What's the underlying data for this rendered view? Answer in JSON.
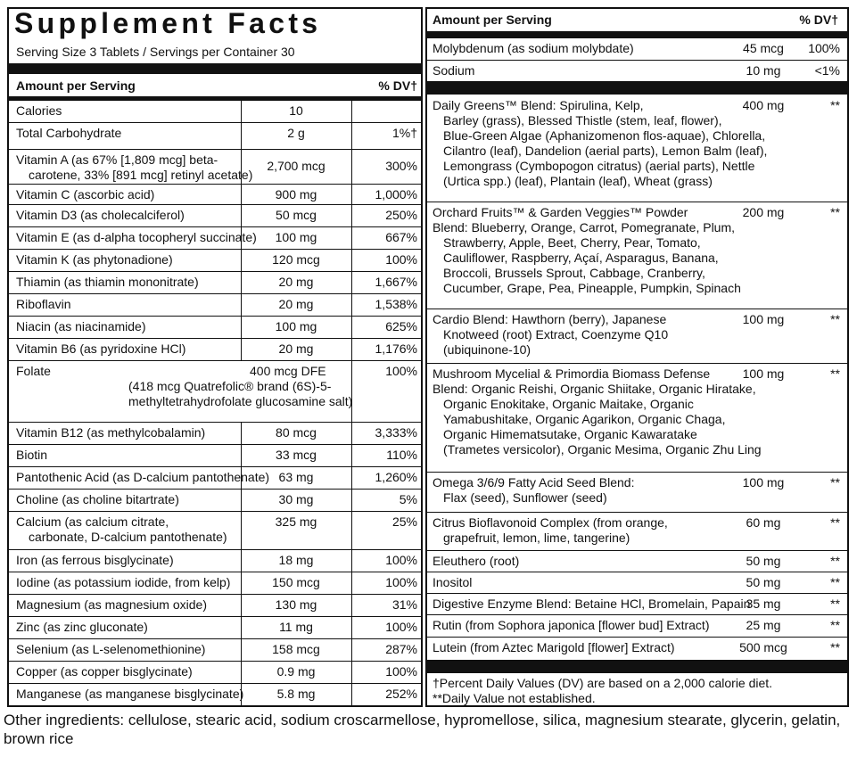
{
  "left": {
    "title": "Supplement Facts",
    "serving": "Serving Size 3 Tablets / Servings per Container 30",
    "header": {
      "amount": "Amount per Serving",
      "dv": "% DV†"
    },
    "rows": [
      {
        "name": "Calories",
        "amount": "10",
        "dv": ""
      },
      {
        "name": "Total Carbohydrate",
        "amount": "2 g",
        "dv": "1%†"
      },
      {
        "name": "Vitamin A (as 67% [1,809 mcg] beta-",
        "name2": "carotene, 33% [891 mcg] retinyl acetate)",
        "amount": "2,700 mcg",
        "dv": "300%"
      },
      {
        "name": "Vitamin C (ascorbic acid)",
        "amount": "900 mg",
        "dv": "1,000%"
      },
      {
        "name": "Vitamin D3 (as cholecalciferol)",
        "amount": "50 mcg",
        "dv": "250%"
      },
      {
        "name": "Vitamin E (as d-alpha tocopheryl succinate)",
        "amount": "100 mg",
        "dv": "667%"
      },
      {
        "name": "Vitamin K (as phytonadione)",
        "amount": "120 mcg",
        "dv": "100%"
      },
      {
        "name": "Thiamin (as thiamin mononitrate)",
        "amount": "20 mg",
        "dv": "1,667%"
      },
      {
        "name": "Riboflavin",
        "amount": "20 mg",
        "dv": "1,538%"
      },
      {
        "name": "Niacin (as niacinamide)",
        "amount": "100 mg",
        "dv": "625%"
      },
      {
        "name": "Vitamin B6 (as pyridoxine HCl)",
        "amount": "20 mg",
        "dv": "1,176%"
      },
      {
        "name": "Folate",
        "name2": "(418 mcg Quatrefolic® brand (6S)-5-",
        "name3": "methyltetrahydrofolate glucosamine salt)",
        "amount": "400 mcg DFE",
        "dv": "100%"
      },
      {
        "name": "Vitamin B12 (as methylcobalamin)",
        "amount": "80 mcg",
        "dv": "3,333%"
      },
      {
        "name": "Biotin",
        "amount": "33 mcg",
        "dv": "110%"
      },
      {
        "name": "Pantothenic Acid (as D-calcium pantothenate)",
        "amount": "63 mg",
        "dv": "1,260%"
      },
      {
        "name": "Choline (as choline bitartrate)",
        "amount": "30 mg",
        "dv": "5%"
      },
      {
        "name": "Calcium (as calcium citrate,",
        "name2": "carbonate, D-calcium pantothenate)",
        "amount": "325 mg",
        "dv": "25%"
      },
      {
        "name": "Iron (as ferrous bisglycinate)",
        "amount": "18 mg",
        "dv": "100%"
      },
      {
        "name": "Iodine (as potassium iodide, from kelp)",
        "amount": "150 mcg",
        "dv": "100%"
      },
      {
        "name": "Magnesium (as magnesium oxide)",
        "amount": "130 mg",
        "dv": "31%"
      },
      {
        "name": "Zinc (as zinc gluconate)",
        "amount": "11 mg",
        "dv": "100%"
      },
      {
        "name": "Selenium (as L-selenomethionine)",
        "amount": "158 mcg",
        "dv": "287%"
      },
      {
        "name": "Copper (as copper bisglycinate)",
        "amount": "0.9 mg",
        "dv": "100%"
      },
      {
        "name": "Manganese (as manganese bisglycinate)",
        "amount": "5.8 mg",
        "dv": "252%"
      }
    ]
  },
  "right": {
    "header": {
      "amount": "Amount per Serving",
      "dv": "% DV†"
    },
    "rows": [
      {
        "lines": [
          "Molybdenum (as sodium molybdate)"
        ],
        "amount": "45 mcg",
        "dv": "100%"
      },
      {
        "lines": [
          "Sodium"
        ],
        "amount": "10 mg",
        "dv": "<1%"
      },
      {
        "lines": [
          "Daily Greens™ Blend: Spirulina, Kelp,",
          "Barley (grass), Blessed Thistle (stem, leaf, flower),",
          "Blue-Green Algae (Aphanizomenon flos-aquae), Chlorella,",
          "Cilantro (leaf), Dandelion (aerial parts), Lemon Balm (leaf),",
          "Lemongrass (Cymbopogon citratus) (aerial parts), Nettle",
          "(Urtica spp.) (leaf), Plantain (leaf), Wheat (grass)"
        ],
        "amount": "400 mg",
        "dv": "**"
      },
      {
        "lines": [
          "Orchard Fruits™ & Garden Veggies™ Powder",
          "Blend: Blueberry, Orange, Carrot, Pomegranate, Plum,",
          "Strawberry, Apple, Beet, Cherry, Pear, Tomato,",
          "Cauliflower, Raspberry, Açaí, Asparagus, Banana,",
          "Broccoli, Brussels Sprout, Cabbage, Cranberry,",
          "Cucumber, Grape, Pea, Pineapple, Pumpkin, Spinach"
        ],
        "amount": "200 mg",
        "dv": "**"
      },
      {
        "lines": [
          "Cardio Blend: Hawthorn (berry), Japanese",
          "Knotweed (root) Extract, Coenzyme Q10",
          "(ubiquinone-10)"
        ],
        "amount": "100 mg",
        "dv": "**"
      },
      {
        "lines": [
          "Mushroom Mycelial & Primordia Biomass Defense",
          "Blend: Organic Reishi, Organic Shiitake, Organic Hiratake,",
          "Organic Enokitake, Organic Maitake, Organic",
          "Yamabushitake, Organic Agarikon, Organic Chaga,",
          "Organic Himematsutake, Organic Kawaratake",
          "(Trametes versicolor), Organic Mesima, Organic Zhu Ling"
        ],
        "amount": "100 mg",
        "dv": "**"
      },
      {
        "lines": [
          "Omega 3/6/9 Fatty Acid Seed Blend:",
          "Flax (seed), Sunflower (seed)"
        ],
        "amount": "100 mg",
        "dv": "**"
      },
      {
        "lines": [
          "Citrus Bioflavonoid Complex (from orange,",
          "grapefruit, lemon, lime, tangerine)"
        ],
        "amount": "60 mg",
        "dv": "**"
      },
      {
        "lines": [
          "Eleuthero (root)"
        ],
        "amount": "50 mg",
        "dv": "**"
      },
      {
        "lines": [
          "Inositol"
        ],
        "amount": "50 mg",
        "dv": "**"
      },
      {
        "lines": [
          "Digestive Enzyme Blend: Betaine HCl, Bromelain, Papain"
        ],
        "amount": "35 mg",
        "dv": "**"
      },
      {
        "lines": [
          "Rutin (from Sophora japonica [flower bud] Extract)"
        ],
        "amount": "25 mg",
        "dv": "**"
      },
      {
        "lines": [
          "Lutein (from Aztec Marigold [flower] Extract)"
        ],
        "amount": "500 mcg",
        "dv": "**"
      }
    ],
    "footnote1": "†Percent Daily Values (DV) are based on a 2,000 calorie diet.",
    "footnote2": "**Daily Value not established."
  },
  "other_ingredients": "Other ingredients: cellulose, stearic acid, sodium croscarmellose, hypromellose, silica, magnesium stearate, glycerin, gelatin, brown rice"
}
